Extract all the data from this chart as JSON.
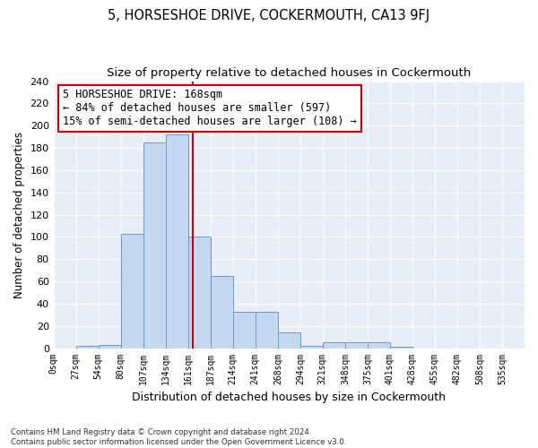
{
  "title": "5, HORSESHOE DRIVE, COCKERMOUTH, CA13 9FJ",
  "subtitle": "Size of property relative to detached houses in Cockermouth",
  "xlabel": "Distribution of detached houses by size in Cockermouth",
  "ylabel": "Number of detached properties",
  "bar_labels": [
    "0sqm",
    "27sqm",
    "54sqm",
    "80sqm",
    "107sqm",
    "134sqm",
    "161sqm",
    "187sqm",
    "214sqm",
    "241sqm",
    "268sqm",
    "294sqm",
    "321sqm",
    "348sqm",
    "375sqm",
    "401sqm",
    "428sqm",
    "455sqm",
    "482sqm",
    "508sqm",
    "535sqm"
  ],
  "bar_values": [
    0,
    2,
    3,
    103,
    185,
    192,
    100,
    65,
    33,
    33,
    14,
    2,
    5,
    5,
    5,
    1,
    0,
    0,
    0,
    0,
    0
  ],
  "bar_color": "#c5d8f0",
  "bar_edge_color": "#6699cc",
  "vline_x": 6.22,
  "vline_color": "#cc0000",
  "annotation_text": "5 HORSESHOE DRIVE: 168sqm\n← 84% of detached houses are smaller (597)\n15% of semi-detached houses are larger (108) →",
  "annotation_box_color": "#ffffff",
  "annotation_box_edge": "#cc0000",
  "footer_text": "Contains HM Land Registry data © Crown copyright and database right 2024.\nContains public sector information licensed under the Open Government Licence v3.0.",
  "ylim": [
    0,
    240
  ],
  "yticks": [
    0,
    20,
    40,
    60,
    80,
    100,
    120,
    140,
    160,
    180,
    200,
    220,
    240
  ],
  "num_bins": 21,
  "bin_width": 1,
  "background_color": "#e8eef8",
  "plot_bg_color": "#dde6f2",
  "title_fontsize": 10.5,
  "subtitle_fontsize": 9.5,
  "annot_fontsize": 8.5
}
